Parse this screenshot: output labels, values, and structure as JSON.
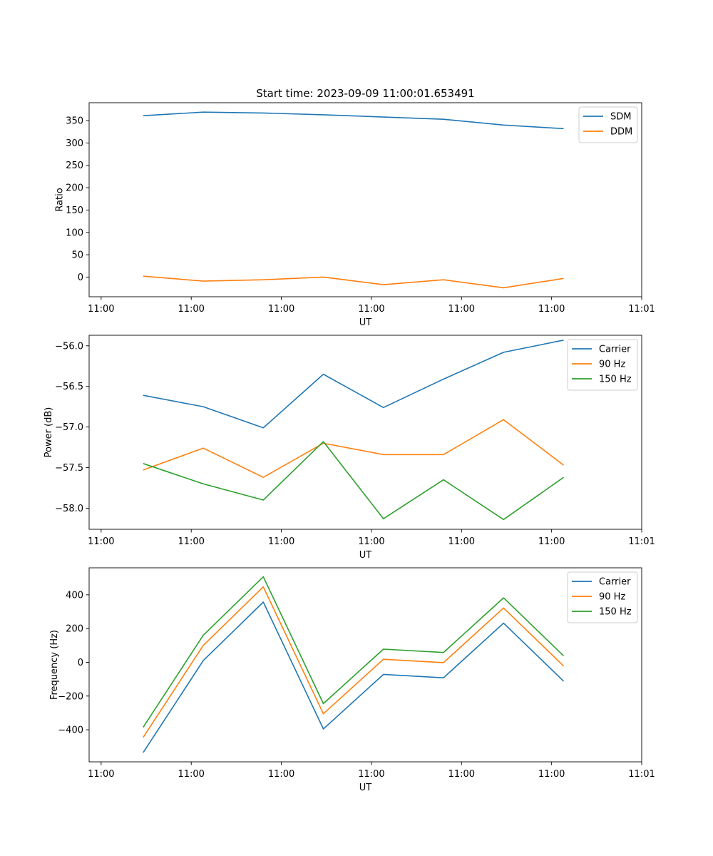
{
  "figure_title": "Start time: 2023-09-09 11:00:01.653491",
  "chart_data": [
    {
      "type": "line",
      "title": "Start time: 2023-09-09 11:00:01.653491",
      "xlabel": "UT",
      "ylabel": "Ratio",
      "xlim": [
        -0.2,
        9.0
      ],
      "ylim": [
        -44,
        390
      ],
      "x_ticks": [
        0,
        1.5,
        3,
        4.5,
        6,
        7.5,
        9
      ],
      "x_tick_labels": [
        "11:00",
        "11:00",
        "11:00",
        "11:00",
        "11:00",
        "11:00",
        "11:01"
      ],
      "y_ticks": [
        0,
        50,
        100,
        150,
        200,
        250,
        300,
        350
      ],
      "y_tick_labels": [
        "0",
        "50",
        "100",
        "150",
        "200",
        "250",
        "300",
        "350"
      ],
      "x": [
        0.7,
        1.7,
        2.7,
        3.7,
        4.7,
        5.7,
        6.7,
        7.7
      ],
      "legend_position": "top-right",
      "series": [
        {
          "name": "SDM",
          "color": "#1f77b4",
          "values": [
            361,
            369,
            367,
            363,
            358,
            353,
            340,
            332
          ]
        },
        {
          "name": "DDM",
          "color": "#ff7f0e",
          "values": [
            2,
            -9,
            -6,
            0,
            -17,
            -6,
            -24,
            -3
          ]
        }
      ]
    },
    {
      "type": "line",
      "xlabel": "UT",
      "ylabel": "Power (dB)",
      "xlim": [
        -0.2,
        9.0
      ],
      "ylim": [
        -58.26,
        -55.87
      ],
      "x_ticks": [
        0,
        1.5,
        3,
        4.5,
        6,
        7.5,
        9
      ],
      "x_tick_labels": [
        "11:00",
        "11:00",
        "11:00",
        "11:00",
        "11:00",
        "11:00",
        "11:01"
      ],
      "y_ticks": [
        -58.0,
        -57.5,
        -57.0,
        -56.5,
        -56.0
      ],
      "y_tick_labels": [
        "−58.0",
        "−57.5",
        "−57.0",
        "−56.5",
        "−56.0"
      ],
      "x": [
        0.7,
        1.7,
        2.7,
        3.7,
        4.7,
        5.7,
        6.7,
        7.7
      ],
      "legend_position": "top-right",
      "series": [
        {
          "name": "Carrier",
          "color": "#1f77b4",
          "values": [
            -56.61,
            -56.75,
            -57.01,
            -56.35,
            -56.76,
            -56.41,
            -56.08,
            -55.93
          ]
        },
        {
          "name": "90 Hz",
          "color": "#ff7f0e",
          "values": [
            -57.53,
            -57.26,
            -57.62,
            -57.2,
            -57.34,
            -57.34,
            -56.91,
            -57.47
          ]
        },
        {
          "name": "150 Hz",
          "color": "#2ca02c",
          "values": [
            -57.45,
            -57.7,
            -57.9,
            -57.18,
            -58.13,
            -57.65,
            -58.14,
            -57.62
          ]
        }
      ]
    },
    {
      "type": "line",
      "xlabel": "UT",
      "ylabel": "Frequency (Hz)",
      "xlim": [
        -0.2,
        9.0
      ],
      "ylim": [
        -590,
        560
      ],
      "x_ticks": [
        0,
        1.5,
        3,
        4.5,
        6,
        7.5,
        9
      ],
      "x_tick_labels": [
        "11:00",
        "11:00",
        "11:00",
        "11:00",
        "11:00",
        "11:00",
        "11:01"
      ],
      "y_ticks": [
        -400,
        -200,
        0,
        200,
        400
      ],
      "y_tick_labels": [
        "−400",
        "−200",
        "0",
        "200",
        "400"
      ],
      "x": [
        0.7,
        1.7,
        2.7,
        3.7,
        4.7,
        5.7,
        6.7,
        7.7
      ],
      "legend_position": "top-right",
      "series": [
        {
          "name": "Carrier",
          "color": "#1f77b4",
          "values": [
            -535,
            10,
            357,
            -395,
            -72,
            -92,
            232,
            -112
          ]
        },
        {
          "name": "90 Hz",
          "color": "#ff7f0e",
          "values": [
            -445,
            100,
            447,
            -305,
            18,
            -2,
            322,
            -22
          ]
        },
        {
          "name": "150 Hz",
          "color": "#2ca02c",
          "values": [
            -385,
            160,
            507,
            -245,
            78,
            58,
            382,
            38
          ]
        }
      ]
    }
  ]
}
